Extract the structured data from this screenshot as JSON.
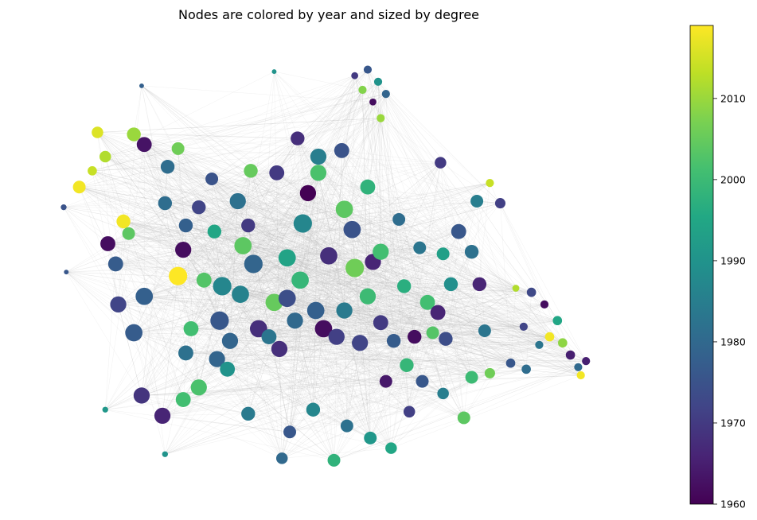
{
  "chart_data": {
    "type": "scatter",
    "title": "Nodes are colored by year and sized by degree",
    "xlabel": "",
    "ylabel": "",
    "axes_visible": false,
    "grid": false,
    "colormap": "viridis",
    "colorbar": {
      "label": "",
      "range": [
        1960,
        2019
      ],
      "ticks": [
        1960,
        1970,
        1980,
        1990,
        2000,
        2010
      ]
    },
    "edge_color": "#bbbbbb",
    "nodes": [
      {
        "x": -0.96,
        "y": 0.4,
        "year": 2018,
        "degree": 9
      },
      {
        "x": -0.89,
        "y": 0.67,
        "year": 2016,
        "degree": 8
      },
      {
        "x": -0.86,
        "y": 0.55,
        "year": 2012,
        "degree": 8
      },
      {
        "x": -0.91,
        "y": 0.48,
        "year": 2014,
        "degree": 6
      },
      {
        "x": -0.79,
        "y": 0.23,
        "year": 2018,
        "degree": 10
      },
      {
        "x": -0.75,
        "y": 0.66,
        "year": 2010,
        "degree": 10
      },
      {
        "x": -0.58,
        "y": -0.04,
        "year": 2019,
        "degree": 14
      },
      {
        "x": -0.58,
        "y": 0.59,
        "year": 2006,
        "degree": 9
      },
      {
        "x": -0.71,
        "y": 0.61,
        "year": 1963,
        "degree": 11
      },
      {
        "x": -0.56,
        "y": 0.09,
        "year": 1962,
        "degree": 12
      },
      {
        "x": -0.85,
        "y": 0.12,
        "year": 1962,
        "degree": 11
      },
      {
        "x": -0.63,
        "y": 0.32,
        "year": 1981,
        "degree": 10
      },
      {
        "x": -0.77,
        "y": 0.17,
        "year": 2004,
        "degree": 9
      },
      {
        "x": -0.81,
        "y": -0.18,
        "year": 1972,
        "degree": 12
      },
      {
        "x": -0.71,
        "y": -0.14,
        "year": 1978,
        "degree": 13
      },
      {
        "x": -0.82,
        "y": 0.02,
        "year": 1977,
        "degree": 11
      },
      {
        "x": -0.75,
        "y": -0.32,
        "year": 1977,
        "degree": 13
      },
      {
        "x": -0.72,
        "y": -0.63,
        "year": 1969,
        "degree": 12
      },
      {
        "x": -0.64,
        "y": -0.73,
        "year": 1966,
        "degree": 12
      },
      {
        "x": -0.56,
        "y": -0.65,
        "year": 2001,
        "degree": 11
      },
      {
        "x": -0.53,
        "y": -0.3,
        "year": 2001,
        "degree": 11
      },
      {
        "x": -0.55,
        "y": -0.42,
        "year": 1982,
        "degree": 11
      },
      {
        "x": -0.5,
        "y": -0.59,
        "year": 2002,
        "degree": 12
      },
      {
        "x": -0.43,
        "y": -0.45,
        "year": 1979,
        "degree": 12
      },
      {
        "x": -0.42,
        "y": -0.26,
        "year": 1976,
        "degree": 14
      },
      {
        "x": -0.41,
        "y": -0.09,
        "year": 1987,
        "degree": 14
      },
      {
        "x": -0.38,
        "y": -0.36,
        "year": 1979,
        "degree": 12
      },
      {
        "x": -0.34,
        "y": -0.13,
        "year": 1986,
        "degree": 13
      },
      {
        "x": -0.33,
        "y": 0.11,
        "year": 2004,
        "degree": 13
      },
      {
        "x": -0.35,
        "y": 0.33,
        "year": 1982,
        "degree": 12
      },
      {
        "x": -0.29,
        "y": 0.02,
        "year": 1979,
        "degree": 14
      },
      {
        "x": -0.31,
        "y": 0.21,
        "year": 1970,
        "degree": 10
      },
      {
        "x": -0.27,
        "y": -0.3,
        "year": 1968,
        "degree": 13
      },
      {
        "x": -0.23,
        "y": -0.34,
        "year": 1983,
        "degree": 11
      },
      {
        "x": -0.21,
        "y": -0.17,
        "year": 2005,
        "degree": 13
      },
      {
        "x": -0.19,
        "y": -0.4,
        "year": 1968,
        "degree": 12
      },
      {
        "x": -0.16,
        "y": -0.15,
        "year": 1974,
        "degree": 13
      },
      {
        "x": -0.13,
        "y": -0.26,
        "year": 1980,
        "degree": 12
      },
      {
        "x": -0.11,
        "y": -0.06,
        "year": 1999,
        "degree": 13
      },
      {
        "x": -0.1,
        "y": 0.22,
        "year": 1987,
        "degree": 14
      },
      {
        "x": -0.08,
        "y": 0.37,
        "year": 1960,
        "degree": 12
      },
      {
        "x": -0.05,
        "y": -0.21,
        "year": 1978,
        "degree": 13
      },
      {
        "x": -0.02,
        "y": -0.3,
        "year": 1962,
        "degree": 13
      },
      {
        "x": 0.0,
        "y": 0.06,
        "year": 1968,
        "degree": 13
      },
      {
        "x": 0.03,
        "y": -0.34,
        "year": 1971,
        "degree": 12
      },
      {
        "x": 0.06,
        "y": -0.21,
        "year": 1984,
        "degree": 12
      },
      {
        "x": 0.09,
        "y": 0.19,
        "year": 1975,
        "degree": 13
      },
      {
        "x": 0.1,
        "y": 0.0,
        "year": 2006,
        "degree": 14
      },
      {
        "x": 0.12,
        "y": -0.37,
        "year": 1972,
        "degree": 12
      },
      {
        "x": 0.15,
        "y": -0.14,
        "year": 2000,
        "degree": 12
      },
      {
        "x": 0.17,
        "y": 0.03,
        "year": 1966,
        "degree": 12
      },
      {
        "x": 0.2,
        "y": -0.27,
        "year": 1970,
        "degree": 11
      },
      {
        "x": 0.22,
        "y": -0.56,
        "year": 1964,
        "degree": 9
      },
      {
        "x": 0.25,
        "y": -0.36,
        "year": 1977,
        "degree": 10
      },
      {
        "x": 0.27,
        "y": 0.24,
        "year": 1981,
        "degree": 9
      },
      {
        "x": 0.29,
        "y": -0.09,
        "year": 1997,
        "degree": 10
      },
      {
        "x": 0.33,
        "y": -0.34,
        "year": 1962,
        "degree": 10
      },
      {
        "x": 0.36,
        "y": -0.56,
        "year": 1976,
        "degree": 9
      },
      {
        "x": 0.38,
        "y": -0.17,
        "year": 2001,
        "degree": 11
      },
      {
        "x": 0.42,
        "y": -0.22,
        "year": 1966,
        "degree": 11
      },
      {
        "x": 0.45,
        "y": -0.35,
        "year": 1974,
        "degree": 10
      },
      {
        "x": 0.47,
        "y": -0.08,
        "year": 1989,
        "degree": 10
      },
      {
        "x": 0.5,
        "y": 0.18,
        "year": 1976,
        "degree": 11
      },
      {
        "x": 0.55,
        "y": 0.08,
        "year": 1982,
        "degree": 10
      },
      {
        "x": 0.58,
        "y": -0.08,
        "year": 1966,
        "degree": 10
      },
      {
        "x": -0.04,
        "y": 0.55,
        "year": 1985,
        "degree": 12
      },
      {
        "x": 0.05,
        "y": 0.58,
        "year": 1975,
        "degree": 11
      },
      {
        "x": -0.12,
        "y": 0.64,
        "year": 1968,
        "degree": 10
      },
      {
        "x": 0.15,
        "y": 0.4,
        "year": 1998,
        "degree": 11
      },
      {
        "x": -0.2,
        "y": 0.47,
        "year": 1970,
        "degree": 11
      },
      {
        "x": -0.45,
        "y": 0.44,
        "year": 1975,
        "degree": 9
      },
      {
        "x": -0.5,
        "y": 0.3,
        "year": 1972,
        "degree": 10
      },
      {
        "x": -0.44,
        "y": 0.18,
        "year": 1995,
        "degree": 10
      },
      {
        "x": -0.62,
        "y": 0.5,
        "year": 1981,
        "degree": 10
      },
      {
        "x": -0.55,
        "y": 0.21,
        "year": 1978,
        "degree": 10
      },
      {
        "x": 0.06,
        "y": 0.29,
        "year": 2004,
        "degree": 13
      },
      {
        "x": 0.2,
        "y": 0.08,
        "year": 2001,
        "degree": 12
      },
      {
        "x": 0.3,
        "y": -0.48,
        "year": 1999,
        "degree": 10
      },
      {
        "x": 0.4,
        "y": -0.32,
        "year": 2003,
        "degree": 9
      },
      {
        "x": 0.35,
        "y": 0.1,
        "year": 1983,
        "degree": 9
      },
      {
        "x": 0.44,
        "y": 0.07,
        "year": 1993,
        "degree": 9
      },
      {
        "x": -0.16,
        "y": 0.05,
        "year": 1994,
        "degree": 13
      },
      {
        "x": -0.04,
        "y": 0.47,
        "year": 2002,
        "degree": 12
      },
      {
        "x": -0.3,
        "y": 0.48,
        "year": 2005,
        "degree": 10
      },
      {
        "x": -0.48,
        "y": -0.06,
        "year": 2003,
        "degree": 11
      },
      {
        "x": -0.39,
        "y": -0.5,
        "year": 1990,
        "degree": 11
      },
      {
        "x": -0.06,
        "y": -0.7,
        "year": 1987,
        "degree": 10
      },
      {
        "x": 0.07,
        "y": -0.78,
        "year": 1982,
        "degree": 9
      },
      {
        "x": 0.16,
        "y": -0.84,
        "year": 1991,
        "degree": 9
      },
      {
        "x": -0.15,
        "y": -0.81,
        "year": 1976,
        "degree": 9
      },
      {
        "x": 0.24,
        "y": -0.89,
        "year": 1995,
        "degree": 8
      },
      {
        "x": 0.02,
        "y": -0.95,
        "year": 1998,
        "degree": 9
      },
      {
        "x": -0.18,
        "y": -0.94,
        "year": 1980,
        "degree": 8
      },
      {
        "x": -0.31,
        "y": -0.72,
        "year": 1984,
        "degree": 10
      },
      {
        "x": 0.31,
        "y": -0.71,
        "year": 1971,
        "degree": 8
      },
      {
        "x": 0.44,
        "y": -0.62,
        "year": 1985,
        "degree": 8
      },
      {
        "x": 0.55,
        "y": -0.54,
        "year": 2000,
        "degree": 9
      },
      {
        "x": 0.52,
        "y": -0.74,
        "year": 2004,
        "degree": 9
      },
      {
        "x": 0.6,
        "y": -0.31,
        "year": 1983,
        "degree": 9
      },
      {
        "x": 0.66,
        "y": 0.32,
        "year": 1971,
        "degree": 7
      },
      {
        "x": 0.78,
        "y": -0.12,
        "year": 1973,
        "degree": 6
      },
      {
        "x": 0.88,
        "y": -0.26,
        "year": 1995,
        "degree": 6
      },
      {
        "x": 0.93,
        "y": -0.43,
        "year": 1965,
        "degree": 6
      },
      {
        "x": 0.96,
        "y": -0.49,
        "year": 1980,
        "degree": 5
      },
      {
        "x": 0.97,
        "y": -0.53,
        "year": 2018,
        "degree": 5
      },
      {
        "x": 0.99,
        "y": -0.46,
        "year": 1965,
        "degree": 5
      },
      {
        "x": 0.85,
        "y": -0.34,
        "year": 2018,
        "degree": 6
      },
      {
        "x": 0.9,
        "y": -0.37,
        "year": 2009,
        "degree": 6
      },
      {
        "x": 0.81,
        "y": -0.38,
        "year": 1983,
        "degree": 5
      },
      {
        "x": 0.75,
        "y": -0.29,
        "year": 1972,
        "degree": 5
      },
      {
        "x": 0.72,
        "y": -0.1,
        "year": 2012,
        "degree": 4
      },
      {
        "x": 0.83,
        "y": -0.18,
        "year": 1962,
        "degree": 5
      },
      {
        "x": 0.7,
        "y": -0.47,
        "year": 1976,
        "degree": 6
      },
      {
        "x": 0.62,
        "y": -0.52,
        "year": 2006,
        "degree": 7
      },
      {
        "x": 0.76,
        "y": -0.5,
        "year": 1981,
        "degree": 6
      },
      {
        "x": 0.15,
        "y": 0.98,
        "year": 1976,
        "degree": 5
      },
      {
        "x": 0.19,
        "y": 0.92,
        "year": 1990,
        "degree": 5
      },
      {
        "x": 0.13,
        "y": 0.88,
        "year": 2008,
        "degree": 5
      },
      {
        "x": 0.1,
        "y": 0.95,
        "year": 1970,
        "degree": 4
      },
      {
        "x": 0.22,
        "y": 0.86,
        "year": 1979,
        "degree": 5
      },
      {
        "x": 0.2,
        "y": 0.74,
        "year": 2010,
        "degree": 5
      },
      {
        "x": 0.17,
        "y": 0.82,
        "year": 1962,
        "degree": 4
      },
      {
        "x": -0.21,
        "y": 0.97,
        "year": 1990,
        "degree": 2
      },
      {
        "x": -0.72,
        "y": 0.9,
        "year": 1978,
        "degree": 2
      },
      {
        "x": -1.02,
        "y": 0.3,
        "year": 1975,
        "degree": 3
      },
      {
        "x": -1.01,
        "y": -0.02,
        "year": 1976,
        "degree": 2
      },
      {
        "x": -0.86,
        "y": -0.7,
        "year": 1991,
        "degree": 3
      },
      {
        "x": -0.63,
        "y": -0.92,
        "year": 1990,
        "degree": 3
      },
      {
        "x": 0.43,
        "y": 0.52,
        "year": 1970,
        "degree": 8
      },
      {
        "x": 0.57,
        "y": 0.33,
        "year": 1985,
        "degree": 9
      },
      {
        "x": 0.62,
        "y": 0.42,
        "year": 2014,
        "degree": 5
      }
    ]
  }
}
